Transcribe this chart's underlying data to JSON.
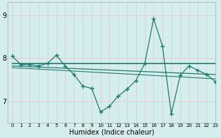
{
  "xlabel": "Humidex (Indice chaleur)",
  "bg_color": "#d4eeed",
  "grid_color": "#e8c8c8",
  "line_color": "#1a7a6e",
  "xlim": [
    -0.5,
    23
  ],
  "ylim": [
    6.5,
    9.3
  ],
  "yticks": [
    7,
    8,
    9
  ],
  "xticks": [
    0,
    1,
    2,
    3,
    4,
    5,
    6,
    7,
    8,
    9,
    10,
    11,
    12,
    13,
    14,
    15,
    16,
    17,
    18,
    19,
    20,
    21,
    22,
    23
  ],
  "series1_x": [
    0,
    1,
    2,
    3,
    4,
    5,
    6,
    7,
    8,
    9,
    10,
    11,
    12,
    13,
    14,
    15,
    16,
    17,
    18,
    19,
    20,
    21,
    22,
    23
  ],
  "series1_y": [
    8.05,
    7.85,
    7.85,
    7.82,
    7.88,
    8.07,
    7.82,
    7.62,
    7.35,
    7.3,
    6.75,
    6.88,
    7.12,
    7.28,
    7.48,
    7.88,
    8.92,
    8.28,
    6.7,
    7.6,
    7.82,
    7.72,
    7.62,
    7.45
  ],
  "series2_x": [
    0,
    23
  ],
  "series2_y": [
    7.88,
    7.88
  ],
  "series3_x": [
    0,
    23
  ],
  "series3_y": [
    7.82,
    7.62
  ],
  "series4_x": [
    0,
    23
  ],
  "series4_y": [
    7.78,
    7.52
  ],
  "xlabel_fontsize": 7,
  "tick_fontsize_x": 5,
  "tick_fontsize_y": 7
}
